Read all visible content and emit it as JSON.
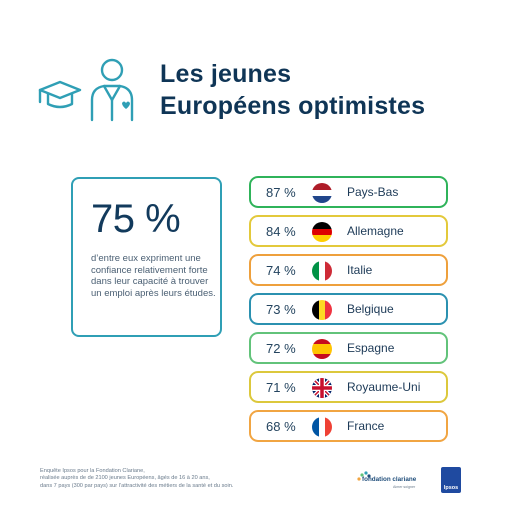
{
  "header": {
    "title_line1": "Les jeunes",
    "title_line2": "Européens optimistes",
    "icon": "graduate-icon"
  },
  "stat": {
    "value": "75 %",
    "description": "d’entre eux expriment une confiance relativement forte dans leur capacité à trouver un emploi après leurs études."
  },
  "countries": [
    {
      "pct": "87 %",
      "name": "Pays-Bas",
      "flag": "netherlands-flag-icon",
      "border": "#2fb35a"
    },
    {
      "pct": "84 %",
      "name": "Allemagne",
      "flag": "germany-flag-icon",
      "border": "#e3c93b"
    },
    {
      "pct": "74 %",
      "name": "Italie",
      "flag": "italy-flag-icon",
      "border": "#eea03c"
    },
    {
      "pct": "73 %",
      "name": "Belgique",
      "flag": "belgium-flag-icon",
      "border": "#2b91b0"
    },
    {
      "pct": "72 %",
      "name": "Espagne",
      "flag": "spain-flag-icon",
      "border": "#62c37a"
    },
    {
      "pct": "71 %",
      "name": "Royaume-Uni",
      "flag": "uk-flag-icon",
      "border": "#dcc83c"
    },
    {
      "pct": "68 %",
      "name": "France",
      "flag": "france-flag-icon",
      "border": "#f1a542"
    }
  ],
  "footnote": {
    "line1": "Enquête Ipsos pour la Fondation Clariane,",
    "line2": "réalisée auprès de de 2100 jeunes Européens, âgés de 16 à 20 ans,",
    "line3": "dans 7 pays (300 par pays) sur l’attractivité des métiers de la santé et du soin."
  },
  "logos": {
    "clariane_brand": "fondation clariane",
    "clariane_tag": "Aimer soigner",
    "ipsos": "Ipsos"
  },
  "colors": {
    "title": "#0f3556",
    "accent": "#2f9fb5"
  }
}
